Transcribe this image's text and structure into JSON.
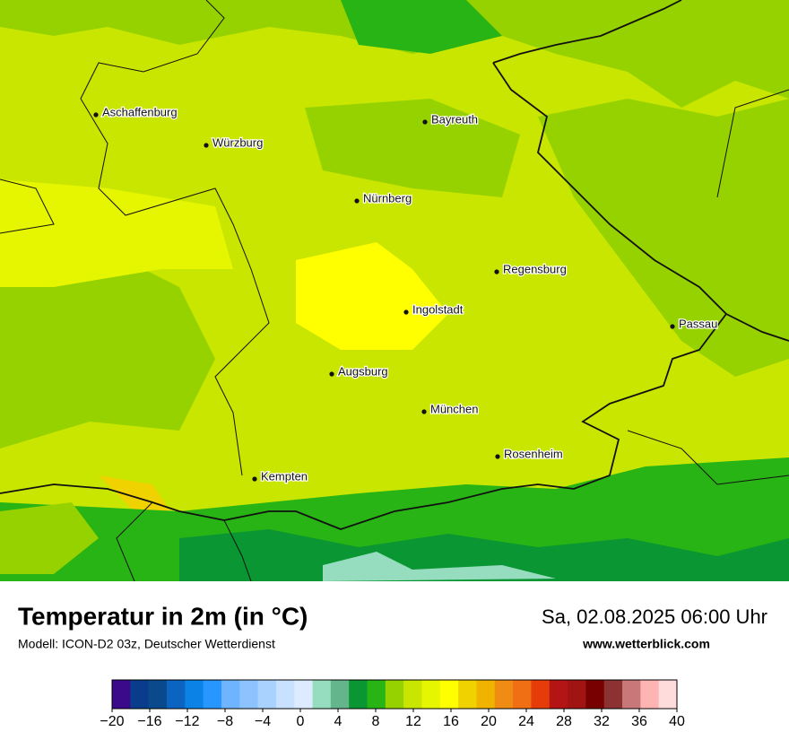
{
  "header": {
    "title": "Temperatur in 2m (in °C)",
    "subtitle": "Modell: ICON-D2 03z, Deutscher Wetterdienst",
    "datetime": "Sa, 02.08.2025 06:00 Uhr",
    "website": "www.wetterblick.com"
  },
  "cities": [
    {
      "label": "Aschaffenburg"
    },
    {
      "label": "Würzburg"
    },
    {
      "label": "Bayreuth"
    },
    {
      "label": "Nürnberg"
    },
    {
      "label": "Regensburg"
    },
    {
      "label": "Ingolstadt"
    },
    {
      "label": "Passau"
    },
    {
      "label": "Augsburg"
    },
    {
      "label": "München"
    },
    {
      "label": "Rosenheim"
    },
    {
      "label": "Kempten"
    }
  ],
  "colorbar": {
    "min": -20,
    "max": 40,
    "colors": [
      "#3a0a8a",
      "#0a3c8c",
      "#0a4a8c",
      "#0a64c0",
      "#0a82e6",
      "#2896ff",
      "#6eb4ff",
      "#8cc3ff",
      "#aad2ff",
      "#c8e1ff",
      "#dcebff",
      "#96dcbe",
      "#64b48c",
      "#0a9632",
      "#28b414",
      "#96d200",
      "#c8e600",
      "#e6f500",
      "#ffff00",
      "#f0d200",
      "#f0b400",
      "#f08c14",
      "#f06e14",
      "#e63c0a",
      "#b41414",
      "#a01414",
      "#780000",
      "#8c3232",
      "#c87878",
      "#ffb4b4",
      "#ffdcdc"
    ],
    "ticks": [
      {
        "value": -20,
        "label": "−20"
      },
      {
        "value": -16,
        "label": "−16"
      },
      {
        "value": -12,
        "label": "−12"
      },
      {
        "value": -8,
        "label": "−8"
      },
      {
        "value": -4,
        "label": "−4"
      },
      0,
      4,
      8,
      12,
      16,
      20,
      24,
      28,
      32,
      36,
      40
    ]
  }
}
